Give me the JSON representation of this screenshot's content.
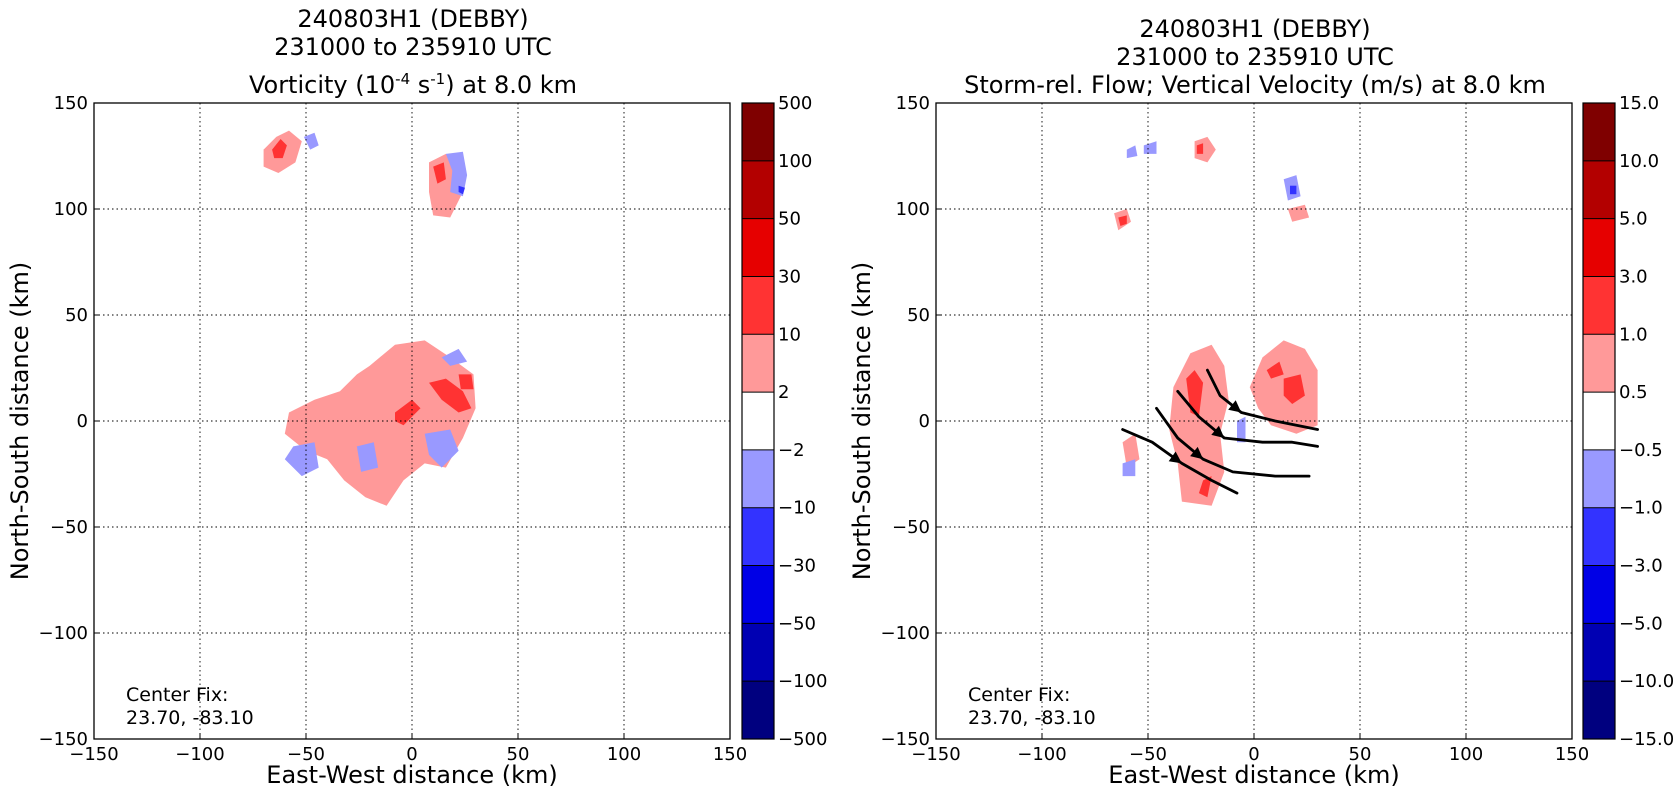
{
  "chart_data": [
    {
      "type": "heatmap",
      "title_line1": "240803H1 (DEBBY)",
      "title_line2": "231000 to 235910 UTC",
      "title_line3_pre": "Vorticity (10",
      "title_line3_sup1": "-4",
      "title_line3_mid": " s",
      "title_line3_sup2": "-1",
      "title_line3_post": ") at 8.0 km",
      "xlabel": "East-West distance (km)",
      "ylabel": "North-South distance (km)",
      "xlim": [
        -150,
        150
      ],
      "ylim": [
        -150,
        150
      ],
      "xticks": [
        "−150",
        "−100",
        "−50",
        "0",
        "50",
        "100",
        "150"
      ],
      "yticks": [
        "150",
        "100",
        "50",
        "0",
        "−50",
        "−100",
        "−150"
      ],
      "grid": true,
      "annotation_line1": "Center Fix:",
      "annotation_line2": "23.70, -83.10",
      "colorbar": {
        "labels": [
          "500",
          "100",
          "50",
          "30",
          "10",
          "2",
          "−2",
          "−10",
          "−30",
          "−50",
          "−100",
          "−500"
        ],
        "colors": [
          "#7f0000",
          "#b30000",
          "#e60000",
          "#ff3333",
          "#ff9999",
          "#ffffff",
          "#9999ff",
          "#3333ff",
          "#0000e6",
          "#0000b3",
          "#00007f"
        ]
      },
      "regions": [
        {
          "level": "2 to 10",
          "color": "#ff9999",
          "poly": [
            [
              -70,
              128
            ],
            [
              -64,
              134
            ],
            [
              -58,
              137
            ],
            [
              -52,
              132
            ],
            [
              -55,
              122
            ],
            [
              -63,
              117
            ],
            [
              -70,
              120
            ]
          ]
        },
        {
          "level": "10 to 30",
          "color": "#ff3333",
          "poly": [
            [
              -66,
              128
            ],
            [
              -62,
              133
            ],
            [
              -59,
              130
            ],
            [
              -61,
              124
            ],
            [
              -65,
              124
            ]
          ]
        },
        {
          "level": "-2 to -10",
          "color": "#9999ff",
          "poly": [
            [
              -51,
              134
            ],
            [
              -46,
              136
            ],
            [
              -44,
              130
            ],
            [
              -48,
              128
            ]
          ]
        },
        {
          "level": "2 to 10",
          "color": "#ff9999",
          "poly": [
            [
              8,
              122
            ],
            [
              16,
              126
            ],
            [
              22,
              120
            ],
            [
              23,
              106
            ],
            [
              18,
              96
            ],
            [
              10,
              97
            ],
            [
              8,
              108
            ]
          ]
        },
        {
          "level": "10 to 30",
          "color": "#ff3333",
          "poly": [
            [
              10,
              120
            ],
            [
              15,
              122
            ],
            [
              16,
              114
            ],
            [
              12,
              112
            ]
          ]
        },
        {
          "level": "-2 to -10",
          "color": "#9999ff",
          "poly": [
            [
              16,
              126
            ],
            [
              24,
              127
            ],
            [
              26,
              116
            ],
            [
              24,
              106
            ],
            [
              18,
              108
            ],
            [
              19,
              118
            ]
          ]
        },
        {
          "level": "-10 to -30",
          "color": "#3333ff",
          "poly": [
            [
              22,
              111
            ],
            [
              25,
              110
            ],
            [
              24,
              107
            ],
            [
              22,
              108
            ]
          ]
        },
        {
          "level": "2 to 10",
          "color": "#ff9999",
          "poly": [
            [
              -20,
              26
            ],
            [
              -8,
              36
            ],
            [
              6,
              38
            ],
            [
              18,
              30
            ],
            [
              29,
              22
            ],
            [
              30,
              6
            ],
            [
              24,
              -8
            ],
            [
              16,
              -22
            ],
            [
              6,
              -20
            ],
            [
              -4,
              -28
            ],
            [
              -12,
              -40
            ],
            [
              -22,
              -36
            ],
            [
              -32,
              -28
            ],
            [
              -40,
              -18
            ],
            [
              -50,
              -14
            ],
            [
              -60,
              -6
            ],
            [
              -58,
              4
            ],
            [
              -46,
              10
            ],
            [
              -34,
              14
            ],
            [
              -26,
              22
            ]
          ]
        },
        {
          "level": "10 to 30",
          "color": "#ff3333",
          "poly": [
            [
              -8,
              4
            ],
            [
              0,
              10
            ],
            [
              4,
              6
            ],
            [
              -4,
              -2
            ],
            [
              -8,
              0
            ]
          ]
        },
        {
          "level": "10 to 30",
          "color": "#ff3333",
          "poly": [
            [
              8,
              18
            ],
            [
              16,
              20
            ],
            [
              24,
              14
            ],
            [
              28,
              6
            ],
            [
              22,
              4
            ],
            [
              14,
              10
            ]
          ]
        },
        {
          "level": "10 to 30",
          "color": "#ff3333",
          "poly": [
            [
              22,
              22
            ],
            [
              28,
              22
            ],
            [
              29,
              15
            ],
            [
              23,
              15
            ]
          ]
        },
        {
          "level": "-2 to -10",
          "color": "#9999ff",
          "poly": [
            [
              -56,
              -12
            ],
            [
              -46,
              -10
            ],
            [
              -44,
              -22
            ],
            [
              -52,
              -26
            ],
            [
              -60,
              -18
            ]
          ]
        },
        {
          "level": "-2 to -10",
          "color": "#9999ff",
          "poly": [
            [
              -26,
              -12
            ],
            [
              -18,
              -10
            ],
            [
              -16,
              -22
            ],
            [
              -24,
              -24
            ]
          ]
        },
        {
          "level": "-2 to -10",
          "color": "#9999ff",
          "poly": [
            [
              6,
              -6
            ],
            [
              18,
              -4
            ],
            [
              22,
              -14
            ],
            [
              14,
              -22
            ],
            [
              8,
              -16
            ]
          ]
        },
        {
          "level": "-2 to -10",
          "color": "#9999ff",
          "poly": [
            [
              14,
              30
            ],
            [
              22,
              34
            ],
            [
              26,
              28
            ],
            [
              18,
              26
            ]
          ]
        }
      ]
    },
    {
      "type": "heatmap",
      "title_line1": "240803H1 (DEBBY)",
      "title_line2": "231000 to 235910 UTC",
      "title_line3": "Storm-rel. Flow; Vertical Velocity (m/s) at 8.0 km",
      "xlabel": "East-West distance (km)",
      "ylabel": "North-South distance (km)",
      "xlim": [
        -150,
        150
      ],
      "ylim": [
        -150,
        150
      ],
      "xticks": [
        "−150",
        "−100",
        "−50",
        "0",
        "50",
        "100",
        "150"
      ],
      "yticks": [
        "150",
        "100",
        "50",
        "0",
        "−50",
        "−100",
        "−150"
      ],
      "grid": true,
      "annotation_line1": "Center Fix:",
      "annotation_line2": "23.70, -83.10",
      "colorbar": {
        "labels": [
          "15.0",
          "10.0",
          "5.0",
          "3.0",
          "1.0",
          "0.5",
          "−0.5",
          "−1.0",
          "−3.0",
          "−5.0",
          "−10.0",
          "−15.0"
        ],
        "colors": [
          "#7f0000",
          "#b30000",
          "#e60000",
          "#ff3333",
          "#ff9999",
          "#ffffff",
          "#9999ff",
          "#3333ff",
          "#0000e6",
          "#0000b3",
          "#00007f"
        ]
      },
      "regions": [
        {
          "level": "0.5 to 1.0",
          "color": "#ff9999",
          "poly": [
            [
              -38,
              16
            ],
            [
              -30,
              32
            ],
            [
              -20,
              36
            ],
            [
              -14,
              26
            ],
            [
              -12,
              10
            ],
            [
              -16,
              -6
            ],
            [
              -14,
              -24
            ],
            [
              -20,
              -40
            ],
            [
              -34,
              -38
            ],
            [
              -36,
              -20
            ],
            [
              -40,
              -4
            ]
          ]
        },
        {
          "level": "1.0 to 3.0",
          "color": "#ff3333",
          "poly": [
            [
              -32,
              20
            ],
            [
              -28,
              24
            ],
            [
              -24,
              18
            ],
            [
              -26,
              2
            ],
            [
              -30,
              4
            ]
          ]
        },
        {
          "level": "1.0 to 3.0",
          "color": "#ff3333",
          "poly": [
            [
              -24,
              -28
            ],
            [
              -20,
              -26
            ],
            [
              -22,
              -36
            ],
            [
              -26,
              -34
            ]
          ]
        },
        {
          "level": "0.5 to 1.0",
          "color": "#ff9999",
          "poly": [
            [
              4,
              30
            ],
            [
              14,
              38
            ],
            [
              24,
              34
            ],
            [
              30,
              24
            ],
            [
              30,
              -2
            ],
            [
              20,
              -6
            ],
            [
              8,
              -2
            ],
            [
              2,
              6
            ],
            [
              -2,
              16
            ]
          ]
        },
        {
          "level": "1.0 to 3.0",
          "color": "#ff3333",
          "poly": [
            [
              14,
              20
            ],
            [
              22,
              22
            ],
            [
              24,
              12
            ],
            [
              18,
              8
            ],
            [
              14,
              12
            ]
          ]
        },
        {
          "level": "1.0 to 3.0",
          "color": "#ff3333",
          "poly": [
            [
              6,
              24
            ],
            [
              12,
              28
            ],
            [
              14,
              22
            ],
            [
              8,
              20
            ]
          ]
        },
        {
          "level": "-0.5 to -1.0",
          "color": "#9999ff",
          "poly": [
            [
              -8,
              0
            ],
            [
              -4,
              2
            ],
            [
              -4,
              -10
            ],
            [
              -8,
              -10
            ]
          ]
        },
        {
          "level": "0.5 to 1.0",
          "color": "#ff9999",
          "poly": [
            [
              -62,
              -10
            ],
            [
              -56,
              -6
            ],
            [
              -54,
              -18
            ],
            [
              -60,
              -22
            ]
          ]
        },
        {
          "level": "-0.5 to -1.0",
          "color": "#9999ff",
          "poly": [
            [
              -62,
              -20
            ],
            [
              -56,
              -18
            ],
            [
              -56,
              -26
            ],
            [
              -62,
              -26
            ]
          ]
        },
        {
          "level": "0.5 to 1.0",
          "color": "#ff9999",
          "poly": [
            [
              -28,
              132
            ],
            [
              -22,
              134
            ],
            [
              -18,
              128
            ],
            [
              -22,
              122
            ],
            [
              -28,
              124
            ]
          ]
        },
        {
          "level": "1.0 to 3.0",
          "color": "#ff3333",
          "poly": [
            [
              -27,
              130
            ],
            [
              -24,
              131
            ],
            [
              -24,
              126
            ],
            [
              -27,
              126
            ]
          ]
        },
        {
          "level": "-0.5 to -1.0",
          "color": "#9999ff",
          "poly": [
            [
              -52,
              130
            ],
            [
              -46,
              132
            ],
            [
              -46,
              126
            ],
            [
              -52,
              126
            ]
          ]
        },
        {
          "level": "0.5 to 1.0",
          "color": "#ff9999",
          "poly": [
            [
              -66,
              98
            ],
            [
              -60,
              100
            ],
            [
              -58,
              94
            ],
            [
              -64,
              90
            ]
          ]
        },
        {
          "level": "1.0 to 3.0",
          "color": "#ff3333",
          "poly": [
            [
              -64,
              96
            ],
            [
              -60,
              97
            ],
            [
              -60,
              93
            ],
            [
              -63,
              92
            ]
          ]
        },
        {
          "level": "-0.5 to -1.0",
          "color": "#9999ff",
          "poly": [
            [
              14,
              114
            ],
            [
              20,
              116
            ],
            [
              22,
              106
            ],
            [
              16,
              104
            ]
          ]
        },
        {
          "level": "-1.0 to -3.0",
          "color": "#3333ff",
          "poly": [
            [
              17,
              111
            ],
            [
              20,
              111
            ],
            [
              20,
              107
            ],
            [
              17,
              107
            ]
          ]
        },
        {
          "level": "0.5 to 1.0",
          "color": "#ff9999",
          "poly": [
            [
              16,
              100
            ],
            [
              24,
              102
            ],
            [
              26,
              96
            ],
            [
              18,
              94
            ]
          ]
        },
        {
          "level": "-0.5 to -1.0",
          "color": "#9999ff",
          "poly": [
            [
              -60,
              128
            ],
            [
              -56,
              130
            ],
            [
              -55,
              125
            ],
            [
              -60,
              124
            ]
          ]
        }
      ],
      "streamlines": [
        [
          [
            -62,
            -4
          ],
          [
            -48,
            -10
          ],
          [
            -34,
            -20
          ],
          [
            -20,
            -28
          ],
          [
            -8,
            -34
          ]
        ],
        [
          [
            -46,
            6
          ],
          [
            -36,
            -8
          ],
          [
            -24,
            -18
          ],
          [
            -10,
            -24
          ],
          [
            10,
            -26
          ],
          [
            26,
            -26
          ]
        ],
        [
          [
            -36,
            14
          ],
          [
            -26,
            2
          ],
          [
            -14,
            -8
          ],
          [
            4,
            -10
          ],
          [
            18,
            -10
          ],
          [
            30,
            -12
          ]
        ],
        [
          [
            -22,
            24
          ],
          [
            -16,
            12
          ],
          [
            -6,
            4
          ],
          [
            10,
            0
          ],
          [
            20,
            -2
          ],
          [
            30,
            -4
          ]
        ]
      ],
      "arrows": [
        {
          "line": 0,
          "at": 2
        },
        {
          "line": 1,
          "at": 2
        },
        {
          "line": 2,
          "at": 2
        },
        {
          "line": 3,
          "at": 2
        }
      ]
    }
  ]
}
